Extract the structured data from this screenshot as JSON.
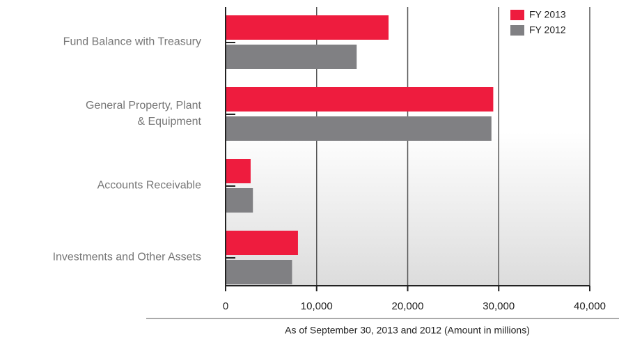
{
  "chart_data": {
    "type": "barh",
    "categories": [
      "Fund Balance with Treasury",
      "General Property, Plant\n& Equipment",
      "Accounts Receivable",
      "Investments and Other Assets"
    ],
    "series": [
      {
        "name": "FY 2013",
        "color": "#ee1c3e",
        "values": [
          17900,
          29400,
          2750,
          7950
        ]
      },
      {
        "name": "FY 2012",
        "color": "#808083",
        "values": [
          14400,
          29200,
          3000,
          7300
        ]
      }
    ],
    "xlim": [
      0,
      40000
    ],
    "xticks": [
      0,
      {
        "value": 10000,
        "label": "10,000"
      },
      {
        "value": 20000,
        "label": "20,000"
      },
      {
        "value": 30000,
        "label": "30,000"
      },
      {
        "value": 40000,
        "label": "40,000"
      }
    ],
    "xlabel": "As of September 30, 2013 and 2012 (Amount in millions)",
    "grid": true,
    "legend": "upper right"
  }
}
